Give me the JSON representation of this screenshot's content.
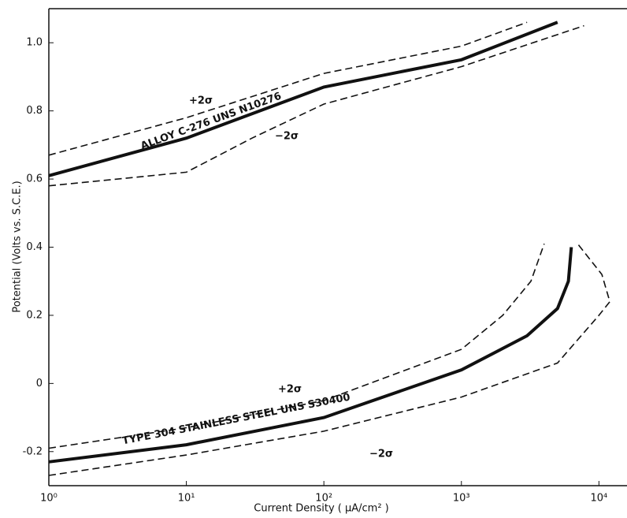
{
  "chart_data": {
    "type": "line",
    "y_label": "Potential (Volts vs. S.C.E.)",
    "x_label": "Current Density ( μA/cm² )",
    "xscale": "log",
    "xlim": [
      1,
      16000
    ],
    "xticks": [
      {
        "value": 1,
        "label": "10⁰"
      },
      {
        "value": 10,
        "label": "10¹"
      },
      {
        "value": 100,
        "label": "10²"
      },
      {
        "value": 1000,
        "label": "10³"
      },
      {
        "value": 10000,
        "label": "10⁴"
      }
    ],
    "ylim": [
      -0.3,
      1.1
    ],
    "yticks": [
      -0.2,
      0,
      0.2,
      0.4,
      {
        "value": 0.6,
        "label": "0.6"
      },
      0.8,
      {
        "value": 1,
        "label": "1.0"
      }
    ],
    "series": [
      {
        "color": "#111111",
        "line_style": "solid",
        "x": [
          1,
          10,
          100,
          1000,
          5000
        ],
        "values": [
          0.61,
          0.72,
          0.87,
          0.95,
          1.06
        ]
      },
      {
        "color": "#111111",
        "line_style": "dashed",
        "x": [
          1,
          10,
          100,
          1000,
          3000
        ],
        "values": [
          0.67,
          0.78,
          0.91,
          0.99,
          1.06
        ]
      },
      {
        "color": "#111111",
        "line_style": "dashed",
        "x": [
          1,
          10,
          30,
          100,
          1000,
          7800
        ],
        "values": [
          0.58,
          0.62,
          0.72,
          0.82,
          0.93,
          1.05
        ]
      },
      {
        "color": "#111111",
        "line_style": "solid",
        "x": [
          1,
          10,
          100,
          1000,
          3000,
          5000,
          6000,
          6300
        ],
        "values": [
          -0.23,
          -0.18,
          -0.1,
          0.04,
          0.14,
          0.22,
          0.3,
          0.4
        ]
      },
      {
        "color": "#111111",
        "line_style": "dashed",
        "x": [
          1,
          10,
          100,
          1000,
          2000,
          3200,
          4000
        ],
        "values": [
          -0.19,
          -0.13,
          -0.05,
          0.1,
          0.2,
          0.3,
          0.41
        ]
      },
      {
        "color": "#111111",
        "line_style": "dashed",
        "x": [
          1,
          10,
          100,
          1000,
          5000,
          10000,
          12000,
          10500,
          7000
        ],
        "values": [
          -0.27,
          -0.21,
          -0.14,
          -0.04,
          0.06,
          0.2,
          0.24,
          0.32,
          0.41
        ]
      }
    ],
    "annotations": [
      "+2σ",
      "−2σ",
      "ALLOY C-276  UNS N10276",
      "+2σ",
      "−2σ",
      "TYPE 304 STAINLESS STEEL   UNS S30400"
    ]
  }
}
